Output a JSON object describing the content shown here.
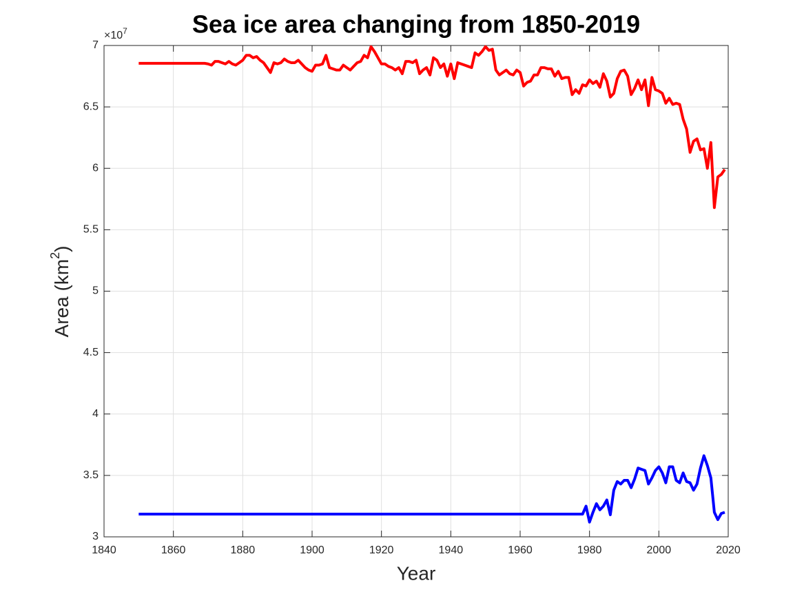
{
  "chart_data": {
    "type": "line",
    "title": "Sea ice area changing from 1850-2019",
    "xlabel": "Year",
    "ylabel": {
      "text": "Area (km",
      "sup": "2",
      "end": ")"
    },
    "y_multiplier": {
      "base": "×10",
      "power": "7"
    },
    "xlim": [
      1840,
      2020
    ],
    "xticks": [
      1840,
      1860,
      1880,
      1900,
      1920,
      1940,
      1960,
      1980,
      2000,
      2020
    ],
    "ylim": [
      3,
      7
    ],
    "yticks": [
      3,
      3.5,
      4,
      4.5,
      5,
      5.5,
      6,
      6.5,
      7
    ],
    "grid": true,
    "x": [
      1850,
      1851,
      1852,
      1853,
      1854,
      1855,
      1856,
      1857,
      1858,
      1859,
      1860,
      1861,
      1862,
      1863,
      1864,
      1865,
      1866,
      1867,
      1868,
      1869,
      1870,
      1871,
      1872,
      1873,
      1874,
      1875,
      1876,
      1877,
      1878,
      1879,
      1880,
      1881,
      1882,
      1883,
      1884,
      1885,
      1886,
      1887,
      1888,
      1889,
      1890,
      1891,
      1892,
      1893,
      1894,
      1895,
      1896,
      1897,
      1898,
      1899,
      1900,
      1901,
      1902,
      1903,
      1904,
      1905,
      1906,
      1907,
      1908,
      1909,
      1910,
      1911,
      1912,
      1913,
      1914,
      1915,
      1916,
      1917,
      1918,
      1919,
      1920,
      1921,
      1922,
      1923,
      1924,
      1925,
      1926,
      1927,
      1928,
      1929,
      1930,
      1931,
      1932,
      1933,
      1934,
      1935,
      1936,
      1937,
      1938,
      1939,
      1940,
      1941,
      1942,
      1943,
      1944,
      1945,
      1946,
      1947,
      1948,
      1949,
      1950,
      1951,
      1952,
      1953,
      1954,
      1955,
      1956,
      1957,
      1958,
      1959,
      1960,
      1961,
      1962,
      1963,
      1964,
      1965,
      1966,
      1967,
      1968,
      1969,
      1970,
      1971,
      1972,
      1973,
      1974,
      1975,
      1976,
      1977,
      1978,
      1979,
      1980,
      1981,
      1982,
      1983,
      1984,
      1985,
      1986,
      1987,
      1988,
      1989,
      1990,
      1991,
      1992,
      1993,
      1994,
      1995,
      1996,
      1997,
      1998,
      1999,
      2000,
      2001,
      2002,
      2003,
      2004,
      2005,
      2006,
      2007,
      2008,
      2009,
      2010,
      2011,
      2012,
      2013,
      2014,
      2015,
      2016,
      2017,
      2018,
      2019
    ],
    "series": [
      {
        "color": "#ff0000",
        "values": [
          6.855,
          6.855,
          6.855,
          6.855,
          6.855,
          6.855,
          6.855,
          6.855,
          6.855,
          6.855,
          6.855,
          6.855,
          6.855,
          6.855,
          6.855,
          6.855,
          6.855,
          6.855,
          6.855,
          6.855,
          6.85,
          6.84,
          6.87,
          6.87,
          6.86,
          6.85,
          6.87,
          6.85,
          6.84,
          6.86,
          6.88,
          6.92,
          6.92,
          6.9,
          6.91,
          6.88,
          6.86,
          6.82,
          6.78,
          6.86,
          6.85,
          6.86,
          6.89,
          6.87,
          6.86,
          6.86,
          6.88,
          6.85,
          6.82,
          6.8,
          6.79,
          6.84,
          6.84,
          6.85,
          6.92,
          6.82,
          6.81,
          6.8,
          6.8,
          6.84,
          6.82,
          6.8,
          6.83,
          6.86,
          6.87,
          6.92,
          6.9,
          6.99,
          6.95,
          6.9,
          6.85,
          6.85,
          6.83,
          6.82,
          6.8,
          6.82,
          6.77,
          6.87,
          6.87,
          6.86,
          6.88,
          6.77,
          6.8,
          6.82,
          6.76,
          6.9,
          6.88,
          6.82,
          6.85,
          6.75,
          6.85,
          6.73,
          6.86,
          6.85,
          6.84,
          6.83,
          6.82,
          6.94,
          6.92,
          6.95,
          6.99,
          6.96,
          6.97,
          6.8,
          6.76,
          6.78,
          6.8,
          6.77,
          6.76,
          6.8,
          6.78,
          6.67,
          6.7,
          6.71,
          6.76,
          6.76,
          6.82,
          6.82,
          6.81,
          6.81,
          6.75,
          6.79,
          6.73,
          6.74,
          6.74,
          6.6,
          6.64,
          6.61,
          6.68,
          6.67,
          6.72,
          6.69,
          6.71,
          6.66,
          6.77,
          6.71,
          6.58,
          6.61,
          6.73,
          6.79,
          6.8,
          6.75,
          6.6,
          6.65,
          6.72,
          6.64,
          6.72,
          6.51,
          6.74,
          6.64,
          6.63,
          6.61,
          6.53,
          6.57,
          6.52,
          6.53,
          6.52,
          6.4,
          6.32,
          6.13,
          6.22,
          6.24,
          6.15,
          6.16,
          6.0,
          6.21,
          5.68,
          5.93,
          5.95,
          5.99
        ]
      },
      {
        "color": "#0000ff",
        "values": [
          3.185,
          3.185,
          3.185,
          3.185,
          3.185,
          3.185,
          3.185,
          3.185,
          3.185,
          3.185,
          3.185,
          3.185,
          3.185,
          3.185,
          3.185,
          3.185,
          3.185,
          3.185,
          3.185,
          3.185,
          3.185,
          3.185,
          3.185,
          3.185,
          3.185,
          3.185,
          3.185,
          3.185,
          3.185,
          3.185,
          3.185,
          3.185,
          3.185,
          3.185,
          3.185,
          3.185,
          3.185,
          3.185,
          3.185,
          3.185,
          3.185,
          3.185,
          3.185,
          3.185,
          3.185,
          3.185,
          3.185,
          3.185,
          3.185,
          3.185,
          3.185,
          3.185,
          3.185,
          3.185,
          3.185,
          3.185,
          3.185,
          3.185,
          3.185,
          3.185,
          3.185,
          3.185,
          3.185,
          3.185,
          3.185,
          3.185,
          3.185,
          3.185,
          3.185,
          3.185,
          3.185,
          3.185,
          3.185,
          3.185,
          3.185,
          3.185,
          3.185,
          3.185,
          3.185,
          3.185,
          3.185,
          3.185,
          3.185,
          3.185,
          3.185,
          3.185,
          3.185,
          3.185,
          3.185,
          3.185,
          3.185,
          3.185,
          3.185,
          3.185,
          3.185,
          3.185,
          3.185,
          3.185,
          3.185,
          3.185,
          3.185,
          3.185,
          3.185,
          3.185,
          3.185,
          3.185,
          3.185,
          3.185,
          3.185,
          3.185,
          3.185,
          3.185,
          3.185,
          3.185,
          3.185,
          3.185,
          3.185,
          3.185,
          3.185,
          3.185,
          3.185,
          3.185,
          3.185,
          3.185,
          3.185,
          3.185,
          3.185,
          3.185,
          3.185,
          3.25,
          3.12,
          3.2,
          3.27,
          3.22,
          3.25,
          3.3,
          3.18,
          3.38,
          3.45,
          3.43,
          3.46,
          3.46,
          3.4,
          3.47,
          3.56,
          3.55,
          3.54,
          3.43,
          3.48,
          3.54,
          3.57,
          3.52,
          3.44,
          3.57,
          3.57,
          3.46,
          3.44,
          3.52,
          3.45,
          3.44,
          3.38,
          3.43,
          3.56,
          3.66,
          3.58,
          3.48,
          3.2,
          3.14,
          3.19,
          3.2
        ]
      }
    ]
  }
}
